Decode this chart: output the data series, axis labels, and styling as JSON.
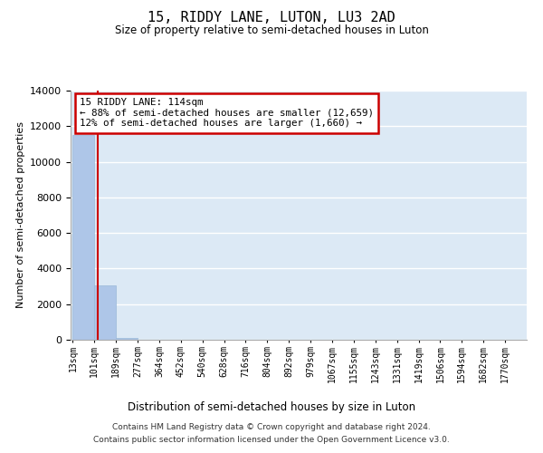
{
  "title": "15, RIDDY LANE, LUTON, LU3 2AD",
  "subtitle": "Size of property relative to semi-detached houses in Luton",
  "xlabel": "Distribution of semi-detached houses by size in Luton",
  "ylabel": "Number of semi-detached properties",
  "footer_line1": "Contains HM Land Registry data © Crown copyright and database right 2024.",
  "footer_line2": "Contains public sector information licensed under the Open Government Licence v3.0.",
  "bar_labels": [
    "13sqm",
    "101sqm",
    "189sqm",
    "277sqm",
    "364sqm",
    "452sqm",
    "540sqm",
    "628sqm",
    "716sqm",
    "804sqm",
    "892sqm",
    "979sqm",
    "1067sqm",
    "1155sqm",
    "1243sqm",
    "1331sqm",
    "1419sqm",
    "1506sqm",
    "1594sqm",
    "1682sqm",
    "1770sqm"
  ],
  "bar_values": [
    11500,
    3050,
    110,
    0,
    0,
    0,
    0,
    0,
    0,
    0,
    0,
    0,
    0,
    0,
    0,
    0,
    0,
    0,
    0,
    0,
    0
  ],
  "bar_color": "#aec6e8",
  "bar_edge_color": "#9ab8d8",
  "grid_color": "#ffffff",
  "background_color": "#dce9f5",
  "property_label": "15 RIDDY LANE: 114sqm",
  "annotation_line1": "← 88% of semi-detached houses are smaller (12,659)",
  "annotation_line2": "12% of semi-detached houses are larger (1,660) →",
  "vline_color": "#cc0000",
  "annotation_box_facecolor": "#ffffff",
  "annotation_box_edgecolor": "#cc0000",
  "ylim": [
    0,
    14000
  ],
  "yticks": [
    0,
    2000,
    4000,
    6000,
    8000,
    10000,
    12000,
    14000
  ],
  "n_bars": 21,
  "vline_bar_index": 1.15
}
